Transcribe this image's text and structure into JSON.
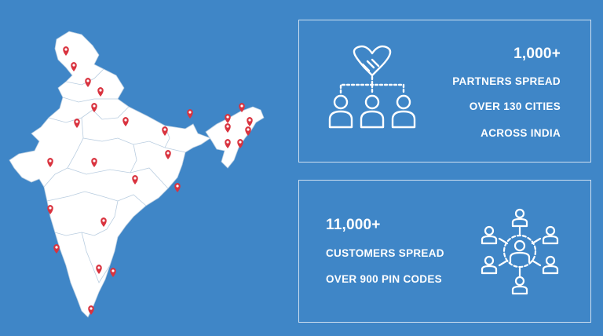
{
  "colors": {
    "background": "#3f86c7",
    "map_fill": "#ffffff",
    "pin": "#d9333f",
    "text": "#ffffff"
  },
  "partners": {
    "count": "1,000+",
    "line1": "PARTNERS SPREAD",
    "line2": "OVER 130 CITIES",
    "line3": "ACROSS INDIA",
    "icon": "partners-network-icon"
  },
  "customers": {
    "count": "11,000+",
    "line1": "CUSTOMERS SPREAD",
    "line2": "OVER 900 PIN CODES",
    "icon": "customers-network-icon"
  },
  "map": {
    "icon": "india-map",
    "pin_icon": "location-pin-icon"
  }
}
